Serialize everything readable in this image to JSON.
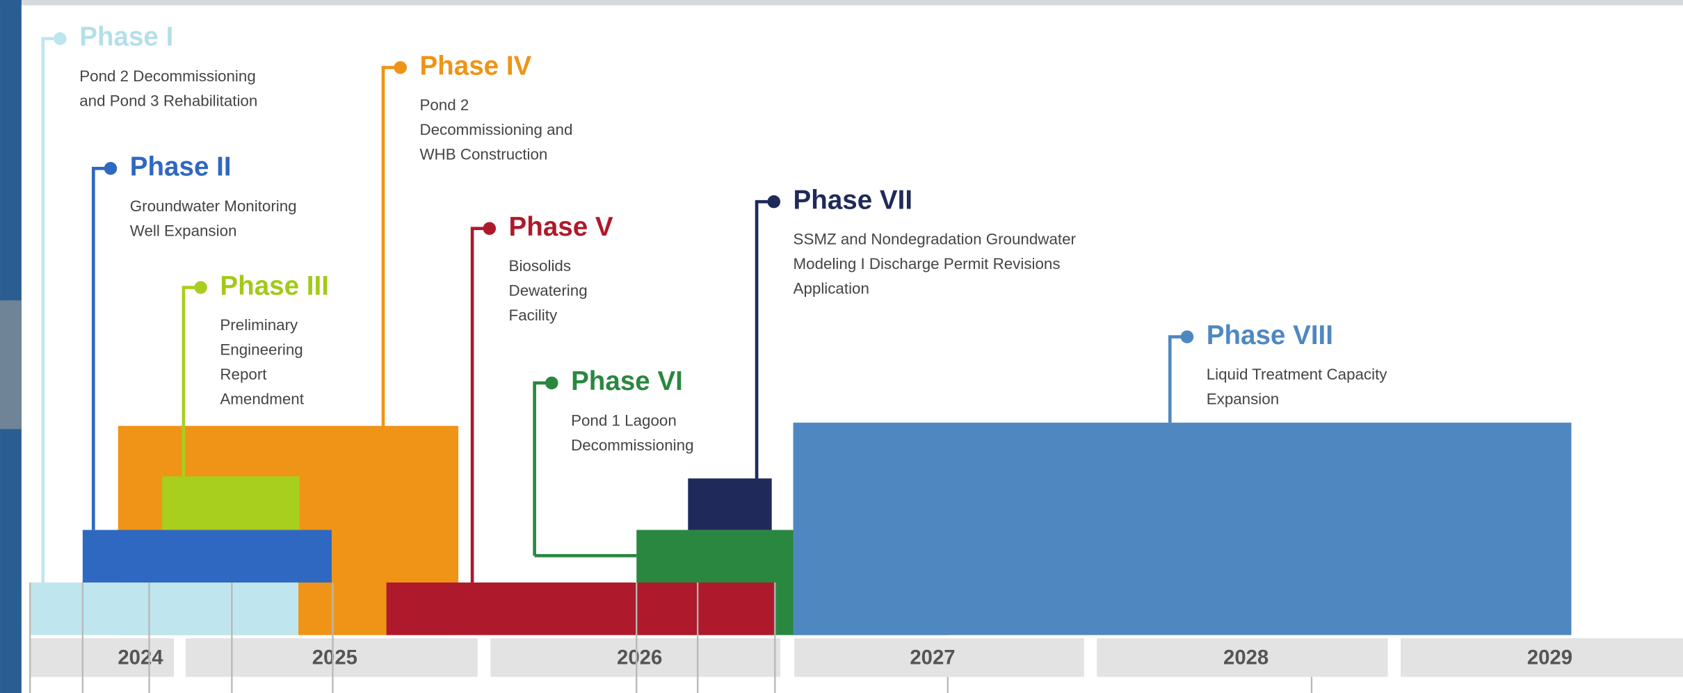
{
  "phases": [
    {
      "title": "Phase I",
      "description": [
        "Pond 2 Decommissioning",
        "and Pond 3 Rehabilitation"
      ]
    },
    {
      "title": "Phase II",
      "description": [
        "Groundwater Monitoring",
        "Well Expansion"
      ]
    },
    {
      "title": "Phase III",
      "description": [
        "Preliminary",
        "Engineering",
        "Report",
        "Amendment"
      ]
    },
    {
      "title": "Phase IV",
      "description": [
        "Pond 2",
        "Decommissioning and",
        "WHB Construction"
      ]
    },
    {
      "title": "Phase V",
      "description": [
        "Biosolids",
        "Dewatering",
        "Facility"
      ]
    },
    {
      "title": "Phase VI",
      "description": [
        "Pond 1 Lagoon",
        "Decommissioning"
      ]
    },
    {
      "title": "Phase VII",
      "description": [
        "SSMZ and Nondegradation Groundwater",
        "Modeling I Discharge Permit Revisions",
        "Application"
      ]
    },
    {
      "title": "Phase VIII",
      "description": [
        "Liquid Treatment Capacity",
        "Expansion"
      ]
    }
  ],
  "years": [
    "2024",
    "2025",
    "2026",
    "2027",
    "2028",
    "2029"
  ]
}
